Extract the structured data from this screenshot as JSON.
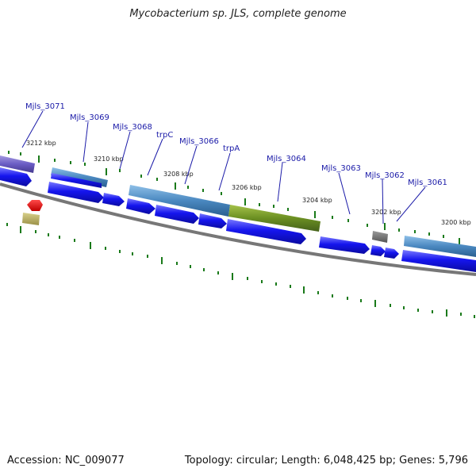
{
  "title": "Mycobacterium sp. JLS, complete genome",
  "footer": {
    "accession": "Accession: NC_009077",
    "summary": "Topology: circular; Length: 6,048,425 bp; Genes: 5,796"
  },
  "colors": {
    "cds_forward": "#1010e8",
    "cds_band": "#4a88c0",
    "rna_band": "#6b8f22",
    "backbone": "#777777",
    "tick": "#1a7a1a",
    "label": "#1a1aa8"
  },
  "scale_labels": [
    "3212 kbp",
    "3210 kbp",
    "3208 kbp",
    "3206 kbp",
    "3204 kbp",
    "3202 kbp",
    "3200 kbp"
  ],
  "gene_labels": [
    "Mjls_3071",
    "Mjls_3069",
    "Mjls_3068",
    "trpC",
    "Mjls_3066",
    "trpA",
    "Mjls_3064",
    "Mjls_3063",
    "Mjls_3062",
    "Mjls_3061"
  ]
}
